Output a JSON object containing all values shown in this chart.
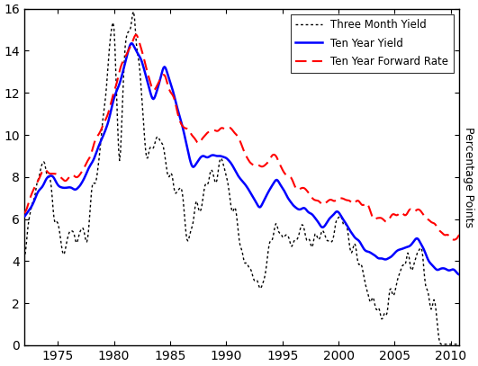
{
  "title": "",
  "xlabel": "",
  "ylabel": "Percentage Points",
  "xlim": [
    1972.0,
    2010.75
  ],
  "ylim": [
    0,
    16
  ],
  "yticks": [
    0,
    2,
    4,
    6,
    8,
    10,
    12,
    14,
    16
  ],
  "xticks": [
    1975,
    1980,
    1985,
    1990,
    1995,
    2000,
    2005,
    2010
  ],
  "three_month_color": "#000000",
  "ten_year_color": "#0000ff",
  "forward_rate_color": "#ff0000",
  "legend_loc": "upper right",
  "background_color": "#ffffff",
  "seed": 12345
}
